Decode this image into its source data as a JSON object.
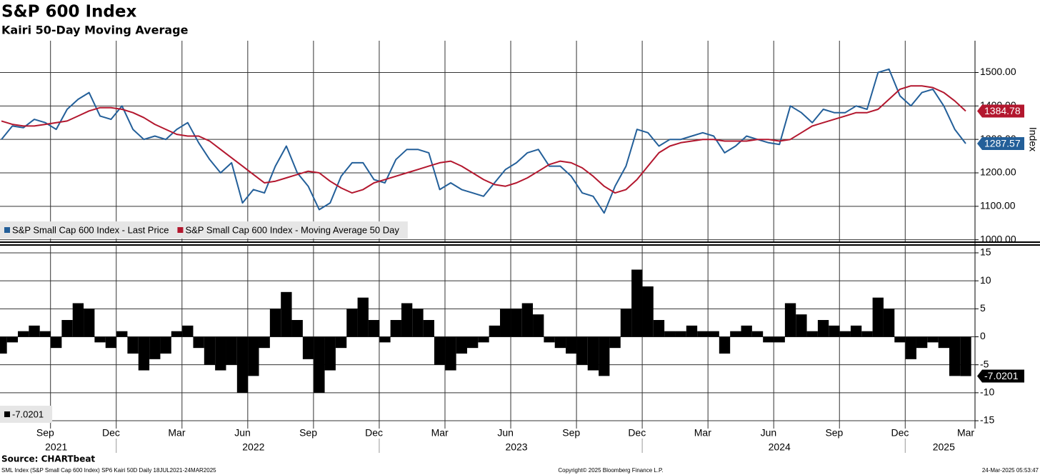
{
  "chart_data": [
    {
      "type": "line",
      "title": "S&P 600 Index",
      "subtitle": "Kairi 50-Day Moving Average",
      "y_label": "Index",
      "grid": true,
      "legend": "bottom-left",
      "ylim": [
        995,
        1595
      ],
      "yticks": [
        {
          "value": 1000,
          "label": "1000.00"
        },
        {
          "value": 1100,
          "label": "1100.00"
        },
        {
          "value": 1200,
          "label": "1200.00"
        },
        {
          "value": 1300,
          "label": "1300.00"
        },
        {
          "value": 1400,
          "label": "1400.00"
        },
        {
          "value": 1500,
          "label": "1500.00"
        }
      ],
      "series": [
        {
          "name": "S&P Small Cap 600 Index - Last Price",
          "color": "#235f99",
          "values": [
            1300,
            1340,
            1335,
            1360,
            1350,
            1330,
            1390,
            1420,
            1440,
            1370,
            1360,
            1400,
            1330,
            1300,
            1310,
            1300,
            1330,
            1350,
            1290,
            1240,
            1200,
            1230,
            1110,
            1150,
            1140,
            1220,
            1280,
            1200,
            1160,
            1090,
            1110,
            1190,
            1230,
            1230,
            1180,
            1170,
            1240,
            1270,
            1270,
            1260,
            1150,
            1170,
            1150,
            1140,
            1130,
            1170,
            1210,
            1230,
            1260,
            1270,
            1220,
            1220,
            1190,
            1140,
            1130,
            1080,
            1160,
            1220,
            1330,
            1320,
            1280,
            1300,
            1300,
            1310,
            1320,
            1310,
            1260,
            1280,
            1310,
            1300,
            1290,
            1285,
            1400,
            1380,
            1350,
            1390,
            1380,
            1380,
            1400,
            1390,
            1500,
            1510,
            1430,
            1400,
            1440,
            1450,
            1400,
            1330,
            1287.57
          ]
        },
        {
          "name": "S&P Small Cap 600 Index - Moving Average 50 Day",
          "color": "#b3172e",
          "values": [
            1355,
            1345,
            1340,
            1340,
            1345,
            1350,
            1355,
            1370,
            1385,
            1395,
            1395,
            1390,
            1380,
            1365,
            1345,
            1330,
            1315,
            1310,
            1310,
            1295,
            1270,
            1245,
            1220,
            1195,
            1170,
            1175,
            1185,
            1195,
            1205,
            1200,
            1175,
            1155,
            1140,
            1150,
            1170,
            1180,
            1190,
            1200,
            1210,
            1220,
            1230,
            1235,
            1220,
            1200,
            1180,
            1165,
            1160,
            1170,
            1185,
            1205,
            1225,
            1235,
            1230,
            1215,
            1190,
            1160,
            1140,
            1150,
            1180,
            1220,
            1260,
            1280,
            1290,
            1295,
            1300,
            1300,
            1295,
            1295,
            1295,
            1300,
            1300,
            1295,
            1300,
            1320,
            1340,
            1350,
            1360,
            1370,
            1380,
            1380,
            1390,
            1420,
            1450,
            1460,
            1460,
            1455,
            1440,
            1415,
            1384.78
          ]
        }
      ]
    },
    {
      "type": "bar",
      "grid": true,
      "legend": "bottom-left",
      "ylim": [
        -16.4,
        16.4
      ],
      "yticks": [
        15,
        10,
        5,
        0,
        -5,
        -10,
        -15
      ],
      "categories": [
        null,
        null,
        null,
        null,
        "Sep",
        null,
        null,
        null,
        null,
        null,
        "Dec",
        null,
        null,
        null,
        null,
        null,
        "Mar",
        null,
        null,
        null,
        null,
        null,
        "Jun",
        null,
        null,
        null,
        null,
        null,
        "Sep",
        null,
        null,
        null,
        null,
        null,
        "Dec",
        null,
        null,
        null,
        null,
        null,
        "Mar",
        null,
        null,
        null,
        null,
        null,
        "Jun",
        null,
        null,
        null,
        null,
        null,
        "Sep",
        null,
        null,
        null,
        null,
        null,
        "Dec",
        null,
        null,
        null,
        null,
        null,
        "Mar",
        null,
        null,
        null,
        null,
        null,
        "Jun",
        null,
        null,
        null,
        null,
        null,
        "Sep",
        null,
        null,
        null,
        null,
        null,
        "Dec",
        null,
        null,
        null,
        null,
        null,
        "Mar"
      ],
      "years": [
        null,
        null,
        null,
        null,
        null,
        "2021",
        null,
        null,
        null,
        null,
        null,
        null,
        null,
        null,
        null,
        null,
        null,
        null,
        null,
        null,
        null,
        null,
        null,
        "2022",
        null,
        null,
        null,
        null,
        null,
        null,
        null,
        null,
        null,
        null,
        null,
        null,
        null,
        null,
        null,
        null,
        null,
        null,
        null,
        null,
        null,
        null,
        null,
        "2023",
        null,
        null,
        null,
        null,
        null,
        null,
        null,
        null,
        null,
        null,
        null,
        null,
        null,
        null,
        null,
        null,
        null,
        null,
        null,
        null,
        null,
        null,
        null,
        "2024",
        null,
        null,
        null,
        null,
        null,
        null,
        null,
        null,
        null,
        null,
        null,
        null,
        null,
        null,
        "2025",
        null,
        null
      ],
      "series": [
        {
          "color": "#000000",
          "values": [
            -3,
            -1,
            1,
            2,
            1,
            -2,
            3,
            6,
            5,
            -1,
            -2,
            1,
            -3,
            -6,
            -4,
            -3,
            1,
            2,
            -2,
            -5,
            -6,
            -5,
            -10,
            -7,
            -2,
            5,
            8,
            3,
            -4,
            -10,
            -6,
            -2,
            5,
            7,
            3,
            -1,
            3,
            6,
            5,
            3,
            -5,
            -6,
            -3,
            -2,
            -1,
            2,
            5,
            5,
            6,
            4,
            -1,
            -2,
            -3,
            -5,
            -6,
            -7,
            -2,
            5,
            12,
            9,
            3,
            1,
            1,
            2,
            1,
            1,
            -3,
            1,
            2,
            1,
            -1,
            -1,
            6,
            4,
            1,
            3,
            2,
            1,
            2,
            1,
            7,
            5,
            -1,
            -4,
            -2,
            -1,
            -2,
            -7,
            -7.0201
          ]
        }
      ]
    }
  ],
  "footer": {
    "source": "Source: CHARTbeat",
    "note": "SML Index (S&P Small Cap 600 Index) SP6 Kairi 50D  Daily 18JUL2021-24MAR2025",
    "copyright": "Copyright© 2025 Bloomberg Finance L.P.",
    "timestamp": "24-Mar-2025 05:53:47"
  }
}
